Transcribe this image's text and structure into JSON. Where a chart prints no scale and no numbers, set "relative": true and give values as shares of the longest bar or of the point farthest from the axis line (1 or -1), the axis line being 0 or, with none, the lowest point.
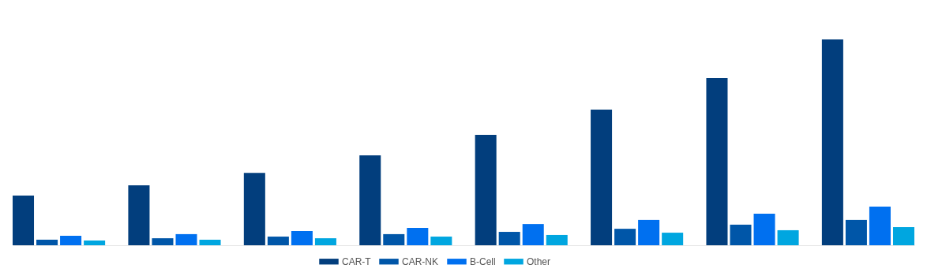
{
  "chart_data": {
    "type": "bar",
    "relative": true,
    "legend": "bottom",
    "categories": [
      null,
      null,
      null,
      null,
      null,
      null,
      null,
      null
    ],
    "series": [
      {
        "name": "CAR-T",
        "color": "#023e7d",
        "values": [
          0.241,
          0.291,
          0.352,
          0.437,
          0.536,
          0.659,
          0.812,
          1
        ]
      },
      {
        "name": "CAR-NK",
        "color": "#0056a8",
        "values": [
          0.027,
          0.034,
          0.042,
          0.054,
          0.065,
          0.08,
          0.1,
          0.123
        ]
      },
      {
        "name": "B-Cell",
        "color": "#0070f0",
        "values": [
          0.046,
          0.054,
          0.069,
          0.084,
          0.103,
          0.123,
          0.153,
          0.188
        ]
      },
      {
        "name": "Other",
        "color": "#00a6e0",
        "values": [
          0.023,
          0.027,
          0.034,
          0.042,
          0.05,
          0.061,
          0.073,
          0.088
        ]
      }
    ]
  }
}
